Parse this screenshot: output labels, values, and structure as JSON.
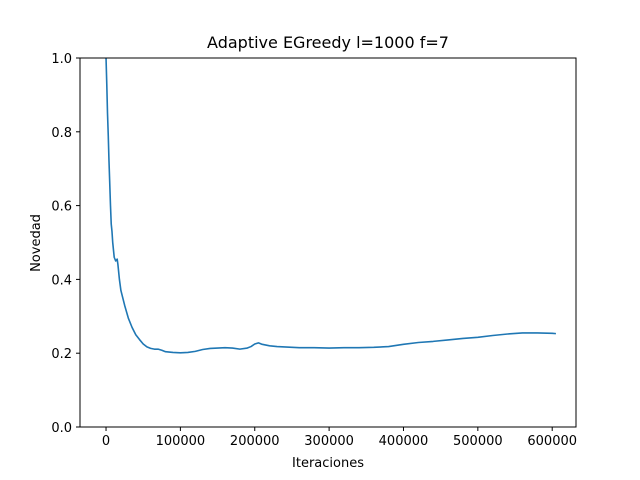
{
  "chart_data": {
    "type": "line",
    "title": "Adaptive EGreedy l=1000 f=7",
    "xlabel": "Iteraciones",
    "ylabel": "Novedad",
    "xlim": [
      -35000,
      632000
    ],
    "ylim": [
      0,
      1.0
    ],
    "xticks": [
      0,
      100000,
      200000,
      300000,
      400000,
      500000,
      600000
    ],
    "xtick_labels": [
      "0",
      "100000",
      "200000",
      "300000",
      "400000",
      "500000",
      "600000"
    ],
    "yticks": [
      0.0,
      0.2,
      0.4,
      0.6,
      0.8,
      1.0
    ],
    "ytick_labels": [
      "0.0",
      "0.2",
      "0.4",
      "0.6",
      "0.8",
      "1.0"
    ],
    "grid": false,
    "line_color": "#1f77b4",
    "series": [
      {
        "x": [
          0,
          1000,
          2000,
          3000,
          4000,
          5000,
          6000,
          7000,
          8000,
          9000,
          10000,
          11000,
          12000,
          13000,
          15000,
          16000,
          18000,
          20000,
          25000,
          30000,
          35000,
          40000,
          45000,
          50000,
          55000,
          60000,
          65000,
          70000,
          75000,
          80000,
          90000,
          100000,
          110000,
          120000,
          130000,
          140000,
          150000,
          160000,
          170000,
          180000,
          190000,
          195000,
          200000,
          205000,
          210000,
          220000,
          230000,
          240000,
          250000,
          260000,
          280000,
          300000,
          320000,
          340000,
          360000,
          380000,
          400000,
          420000,
          440000,
          460000,
          480000,
          500000,
          520000,
          540000,
          560000,
          580000,
          600000,
          605000
        ],
        "y": [
          1.0,
          0.93,
          0.85,
          0.79,
          0.72,
          0.66,
          0.6,
          0.55,
          0.53,
          0.5,
          0.48,
          0.46,
          0.455,
          0.45,
          0.455,
          0.44,
          0.4,
          0.37,
          0.33,
          0.295,
          0.27,
          0.25,
          0.237,
          0.225,
          0.217,
          0.213,
          0.211,
          0.211,
          0.208,
          0.204,
          0.202,
          0.201,
          0.202,
          0.205,
          0.21,
          0.213,
          0.214,
          0.215,
          0.214,
          0.211,
          0.214,
          0.218,
          0.225,
          0.228,
          0.224,
          0.22,
          0.218,
          0.217,
          0.216,
          0.215,
          0.215,
          0.214,
          0.215,
          0.215,
          0.216,
          0.218,
          0.224,
          0.229,
          0.232,
          0.236,
          0.24,
          0.243,
          0.248,
          0.252,
          0.255,
          0.255,
          0.254,
          0.253
        ]
      }
    ]
  }
}
